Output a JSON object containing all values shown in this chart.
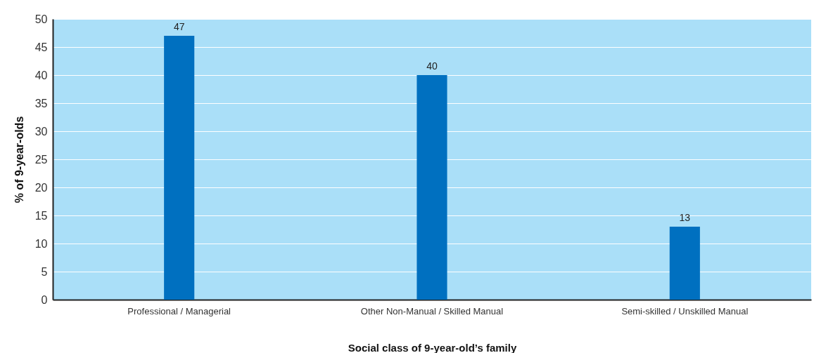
{
  "chart_data": {
    "type": "bar",
    "xlabel": "Social class of 9-year-old’s family",
    "ylabel": "% of 9-year-olds",
    "categories": [
      "Professional / Managerial",
      "Other Non-Manual / Skilled Manual",
      "Semi-skilled / Unskilled Manual"
    ],
    "values": [
      47,
      40,
      13
    ],
    "color": "#0070c0",
    "data_labels": true,
    "ylim": [
      0,
      50
    ],
    "yticks": [
      0,
      5,
      10,
      15,
      20,
      25,
      30,
      35,
      40,
      45,
      50
    ],
    "grid": "y"
  }
}
